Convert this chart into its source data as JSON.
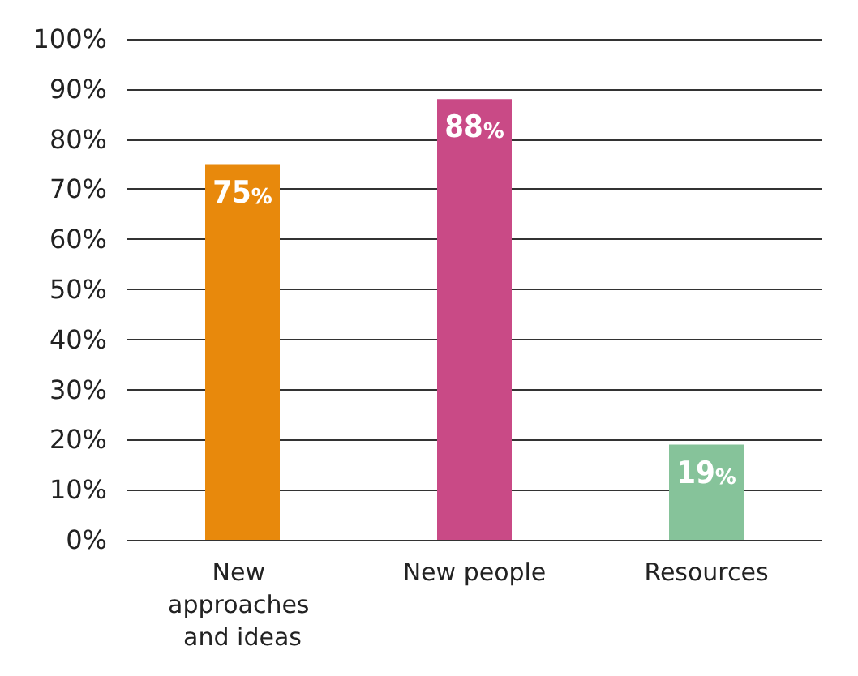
{
  "chart_data": {
    "type": "bar",
    "categories": [
      "New approaches and ideas",
      "New people",
      "Resources"
    ],
    "values": [
      75,
      88,
      19
    ],
    "colors": [
      "#e8890c",
      "#c94a86",
      "#86c39a"
    ],
    "value_labels": [
      "75%",
      "88%",
      "19%"
    ],
    "ylim": [
      0,
      100
    ],
    "yticks": [
      {
        "value": 0,
        "label": "0%"
      },
      {
        "value": 10,
        "label": "10%"
      },
      {
        "value": 20,
        "label": "20%"
      },
      {
        "value": 30,
        "label": "30%"
      },
      {
        "value": 40,
        "label": "40%"
      },
      {
        "value": 50,
        "label": "50%"
      },
      {
        "value": 60,
        "label": "60%"
      },
      {
        "value": 70,
        "label": "70%"
      },
      {
        "value": 80,
        "label": "80%"
      },
      {
        "value": 90,
        "label": "90%"
      },
      {
        "value": 100,
        "label": "100%"
      }
    ],
    "grid": "y"
  }
}
